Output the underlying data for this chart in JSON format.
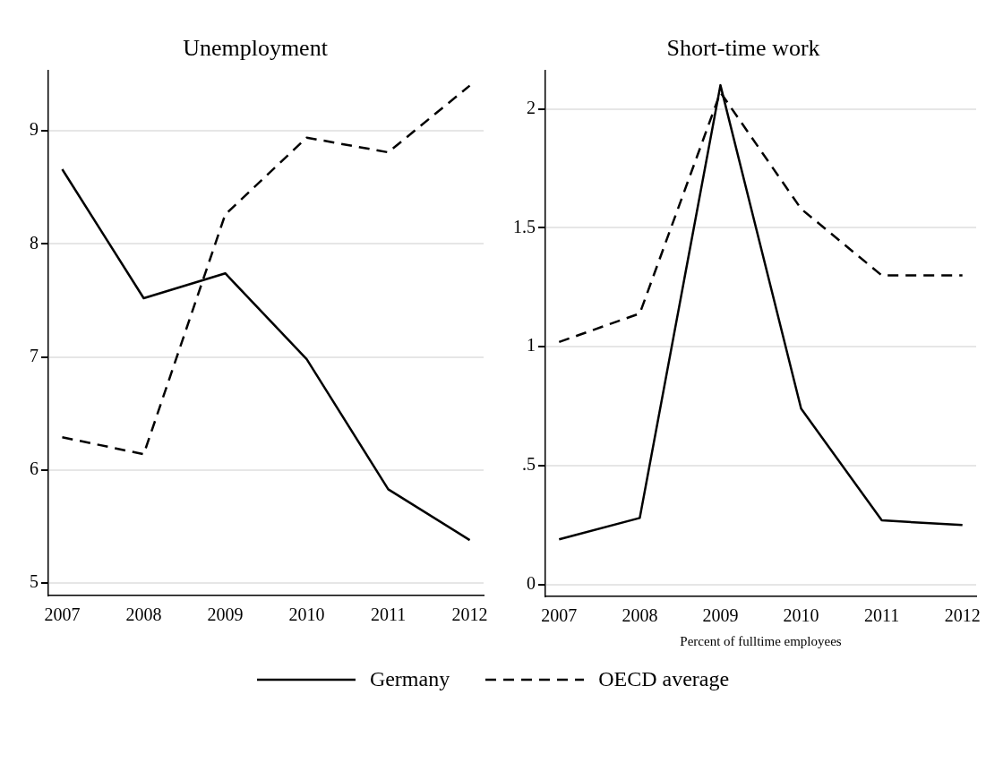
{
  "chart_data": [
    {
      "type": "line",
      "title": "Unemployment",
      "x": [
        2007,
        2008,
        2009,
        2010,
        2011,
        2012
      ],
      "xlim": [
        2006.83,
        2012.17
      ],
      "xticks": [
        2007,
        2008,
        2009,
        2010,
        2011,
        2012
      ],
      "ylim": [
        4.89,
        9.53
      ],
      "yticks": [
        5,
        6,
        7,
        8,
        9
      ],
      "grid": "y",
      "legend": "bottom",
      "marker": "none",
      "series": [
        {
          "name": "Germany",
          "color": "#000000",
          "line_style": "solid",
          "values": [
            8.66,
            7.52,
            7.74,
            6.98,
            5.83,
            5.38
          ]
        },
        {
          "name": "OECD average",
          "color": "#000000",
          "line_style": "dashed",
          "values": [
            6.29,
            6.14,
            8.26,
            8.94,
            8.81,
            9.4
          ]
        }
      ]
    },
    {
      "type": "line",
      "title": "Short-time work",
      "xlabel": "Percent of fulltime employees",
      "x": [
        2007,
        2008,
        2009,
        2010,
        2011,
        2012
      ],
      "xlim": [
        2006.83,
        2012.17
      ],
      "xticks": [
        2007,
        2008,
        2009,
        2010,
        2011,
        2012
      ],
      "ylim": [
        -0.05,
        2.16
      ],
      "yticks": [
        0,
        {
          "value": 0.5,
          "label": ".5"
        },
        1,
        1.5,
        2
      ],
      "grid": "y",
      "marker": "none",
      "series": [
        {
          "color": "#000000",
          "line_style": "solid",
          "values": [
            0.19,
            0.28,
            2.1,
            0.74,
            0.27,
            0.25
          ]
        },
        {
          "color": "#000000",
          "line_style": "dashed",
          "values": [
            1.02,
            1.14,
            2.07,
            1.58,
            1.3,
            1.3
          ]
        }
      ]
    }
  ]
}
